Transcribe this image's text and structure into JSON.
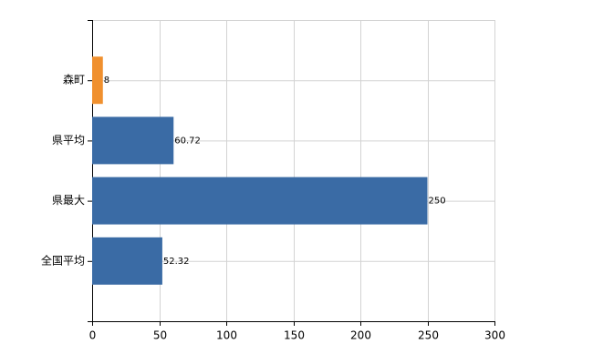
{
  "chart_data": {
    "type": "bar",
    "orientation": "horizontal",
    "categories": [
      "森町",
      "県平均",
      "県最大",
      "全国平均"
    ],
    "values": [
      8,
      60.72,
      250,
      52.32
    ],
    "colors": [
      "#f0902e",
      "#3a6ba5",
      "#3a6ba5",
      "#3a6ba5"
    ],
    "xlim": [
      0,
      300
    ],
    "xticks": [
      0,
      50,
      100,
      150,
      200,
      250,
      300
    ],
    "grid": true
  }
}
